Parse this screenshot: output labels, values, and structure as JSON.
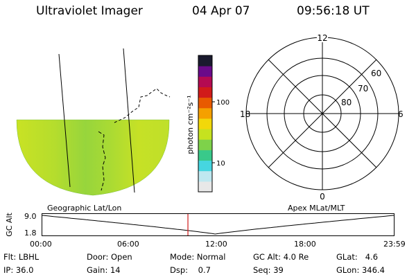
{
  "header": {
    "instrument": "Ultraviolet Imager",
    "date": "04 Apr 07",
    "time": "09:56:18 UT"
  },
  "map": {
    "label": "Geographic Lat/Lon"
  },
  "colorbar": {
    "units": "photon cm⁻²s⁻¹",
    "ticks": [
      "100",
      "10"
    ],
    "scale": "log",
    "colors": [
      "#e8e8e8",
      "#bfe8f0",
      "#46d6e0",
      "#39c98a",
      "#7ed24a",
      "#c6e21f",
      "#f2d80a",
      "#f5a000",
      "#e85a00",
      "#d11a1a",
      "#b40a52",
      "#6a0a8a",
      "#1a1a2e"
    ]
  },
  "polar": {
    "label": "Apex MLat/MLT",
    "mlt_labels": [
      "12",
      "18",
      "6",
      "0"
    ],
    "lat_labels": [
      "60",
      "70",
      "80"
    ]
  },
  "timeline": {
    "ylabel": "GC Alt",
    "yticks": [
      "9.0",
      "1.8"
    ],
    "xticks": [
      "00:00",
      "06:00",
      "12:00",
      "18:00",
      "23:59"
    ],
    "current_time_hours": 9.94,
    "altitude_min_hours": 11.8
  },
  "info": {
    "filter_label": "Flt:",
    "filter_value": "LBHL",
    "ip_label": "IP:",
    "ip_value": "36.0",
    "door_label": "Door:",
    "door_value": "Open",
    "gain_label": "Gain:",
    "gain_value": "14",
    "mode_label": "Mode:",
    "mode_value": "Normal",
    "dsp_label": "Dsp:",
    "dsp_value": "0.7",
    "gcalt_label": "GC Alt:",
    "gcalt_value": "4.0 Re",
    "seq_label": "Seq:",
    "seq_value": "39",
    "glat_label": "GLat:",
    "glat_value": "4.6",
    "glon_label": "GLon:",
    "glon_value": "346.4"
  }
}
